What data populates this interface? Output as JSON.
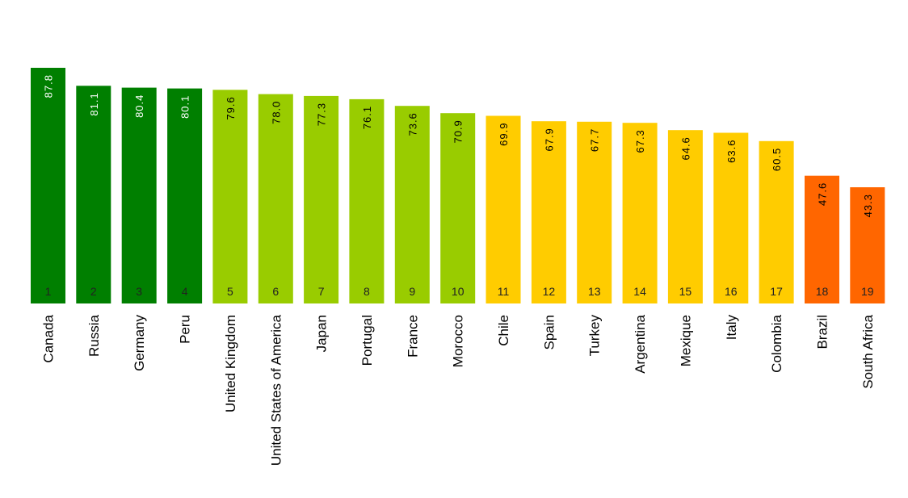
{
  "chart_data": {
    "type": "bar",
    "categories": [
      "Canada",
      "Russia",
      "Germany",
      "Peru",
      "United Kingdom",
      "United States of America",
      "Japan",
      "Portugal",
      "France",
      "Morocco",
      "Chile",
      "Spain",
      "Turkey",
      "Argentina",
      "Mexique",
      "Italy",
      "Colombia",
      "Brazil",
      "South Africa"
    ],
    "values": [
      87.8,
      81.1,
      80.4,
      80.1,
      79.6,
      78.0,
      77.3,
      76.1,
      73.6,
      70.9,
      69.9,
      67.9,
      67.7,
      67.3,
      64.6,
      63.6,
      60.5,
      47.6,
      43.3
    ],
    "value_labels": [
      "87.8",
      "81.1",
      "80.4",
      "80.1",
      "79.6",
      "78.0",
      "77.3",
      "76.1",
      "73.6",
      "70.9",
      "69.9",
      "67.9",
      "67.7",
      "67.3",
      "64.6",
      "63.6",
      "60.5",
      "47.6",
      "43.3"
    ],
    "ranks": [
      "1",
      "2",
      "3",
      "4",
      "5",
      "6",
      "7",
      "8",
      "9",
      "10",
      "11",
      "12",
      "13",
      "14",
      "15",
      "16",
      "17",
      "18",
      "19"
    ],
    "bar_colors": [
      "#007f00",
      "#007f00",
      "#007f00",
      "#007f00",
      "#99cc00",
      "#99cc00",
      "#99cc00",
      "#99cc00",
      "#99cc00",
      "#99cc00",
      "#ffcc00",
      "#ffcc00",
      "#ffcc00",
      "#ffcc00",
      "#ffcc00",
      "#ffcc00",
      "#ffcc00",
      "#ff6600",
      "#ff6600"
    ],
    "value_label_colors": [
      "#ffffff",
      "#ffffff",
      "#ffffff",
      "#ffffff",
      "#000000",
      "#000000",
      "#000000",
      "#000000",
      "#000000",
      "#000000",
      "#000000",
      "#000000",
      "#000000",
      "#000000",
      "#000000",
      "#000000",
      "#000000",
      "#000000",
      "#000000"
    ],
    "ylim": [
      0,
      87.8
    ],
    "grid": false,
    "legend": "none"
  }
}
